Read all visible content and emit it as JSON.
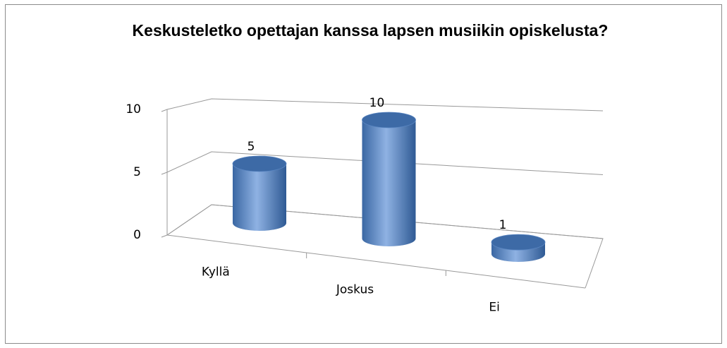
{
  "chart_data": {
    "type": "bar3d",
    "title": "Keskusteletko opettajan kanssa lapsen musiikin opiskelusta?",
    "categories": [
      "Kyllä",
      "Joskus",
      "Ei"
    ],
    "values": [
      5,
      10,
      1
    ],
    "color": "#4f81bd",
    "ylim": [
      0,
      10
    ],
    "yticks": [
      0,
      5,
      10
    ],
    "grid": true
  }
}
